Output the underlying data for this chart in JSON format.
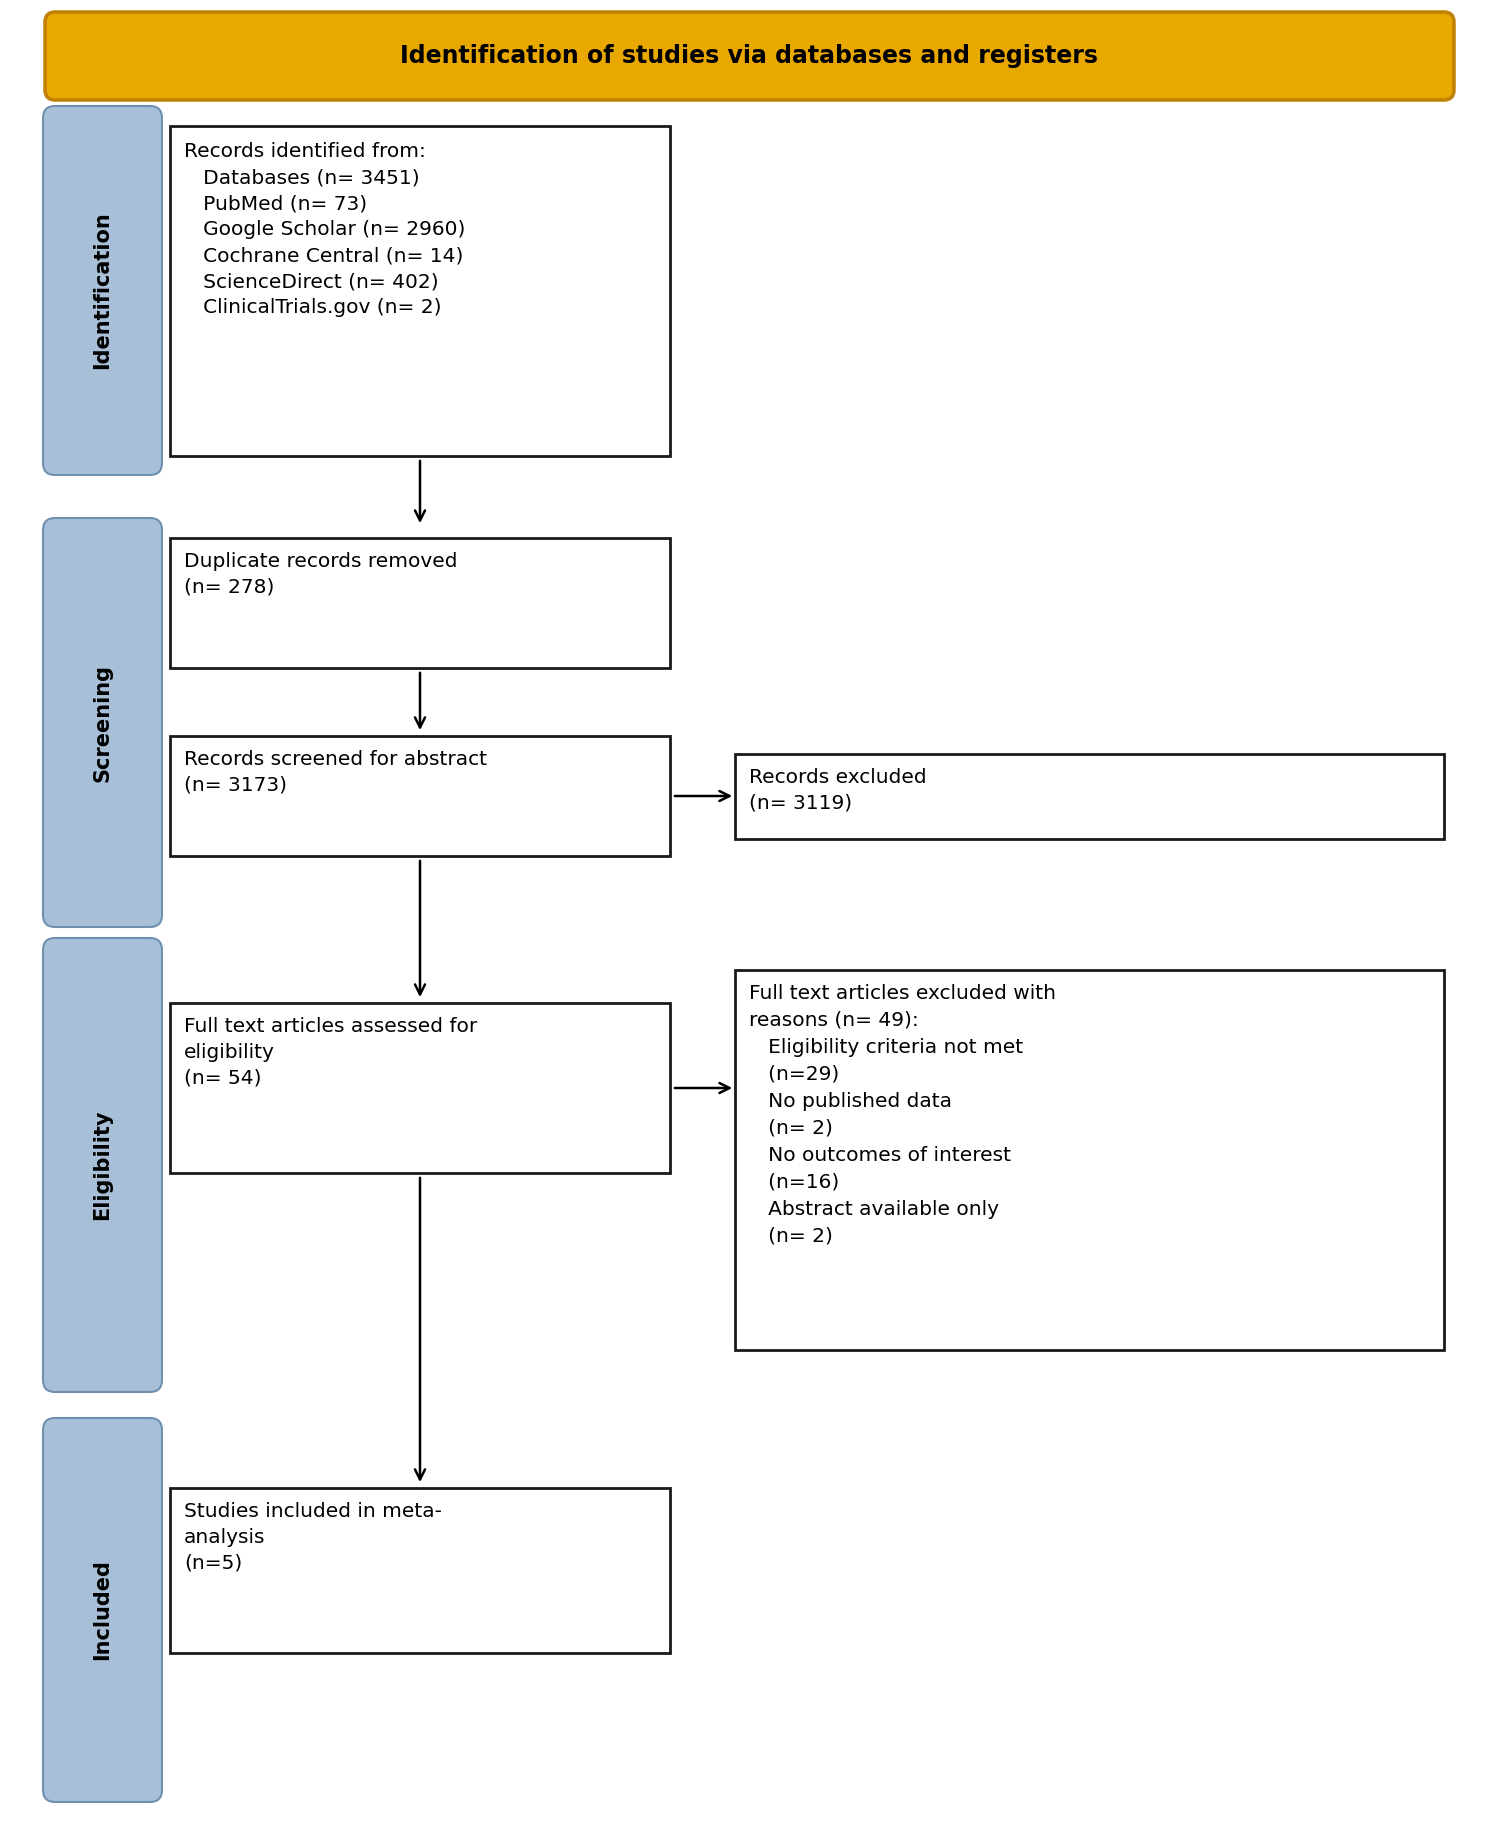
{
  "title": "Identification of studies via databases and registers",
  "title_bg": "#E8A800",
  "title_border": "#C08000",
  "box_bg": "#FFFFFF",
  "box_border": "#1a1a1a",
  "side_label_bg": "#A8BFD8",
  "side_label_border": "#7090B0",
  "side_labels": [
    "Identification",
    "Screening",
    "Eligibility",
    "Included"
  ],
  "box1_line1": "Records identified from:",
  "box1_lines": [
    "   Databases (n= 3451)",
    "   PubMed (n= 73)",
    "   Google Scholar (n= 2960)",
    "   Cochrane Central (n= 14)",
    "   ScienceDirect (n= 402)",
    "   ClinicalTrials.gov (n= 2)"
  ],
  "box2_text": "Duplicate records removed\n(n= 278)",
  "box3_text": "Records screened for abstract\n(n= 3173)",
  "box3r_text": "Records excluded\n(n= 3119)",
  "box4_text": "Full text articles assessed for\neligibility\n(n= 54)",
  "box4r_line1": "Full text articles excluded with",
  "box4r_lines": [
    "reasons (n= 49):",
    "   Eligibility criteria not met",
    "   (n=29)",
    "   No published data",
    "   (n= 2)",
    "   No outcomes of interest",
    "   (n=16)",
    "   Abstract available only",
    "   (n= 2)"
  ],
  "box5_text": "Studies included in meta-\nanalysis\n(n=5)",
  "font_size": 14.5,
  "title_font_size": 17,
  "label_font_size": 15
}
